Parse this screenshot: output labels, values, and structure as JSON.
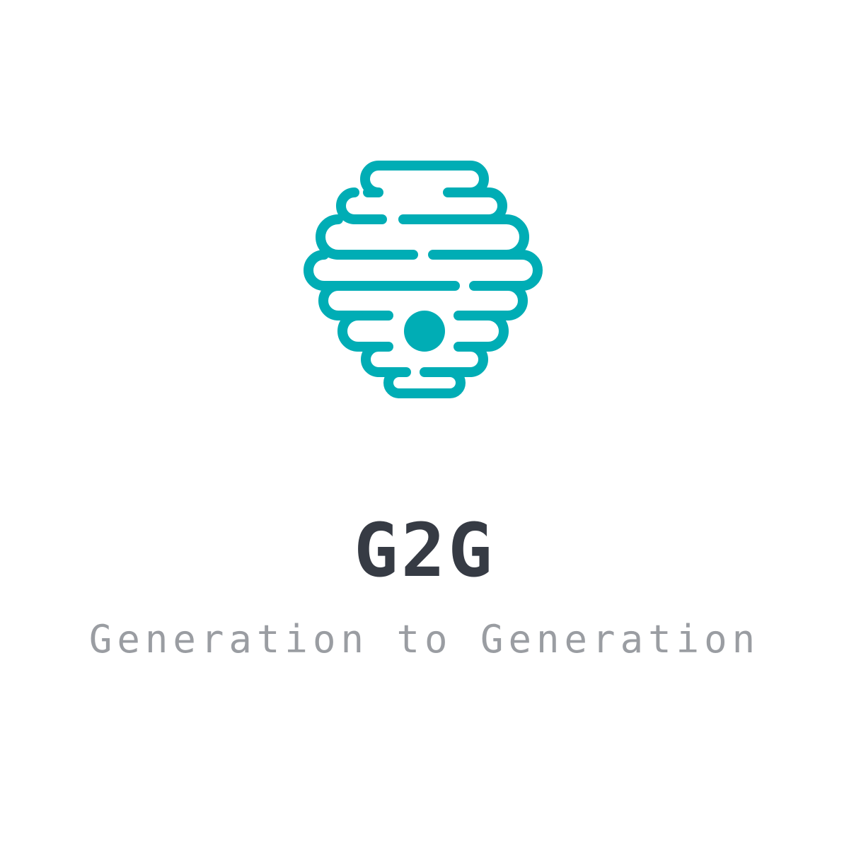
{
  "logo": {
    "icon": "beehive-icon",
    "color": "#00adb5"
  },
  "brand": {
    "name": "G2G",
    "tagline": "Generation to Generation",
    "name_color": "#363b44",
    "tagline_color": "#9a9da2"
  }
}
